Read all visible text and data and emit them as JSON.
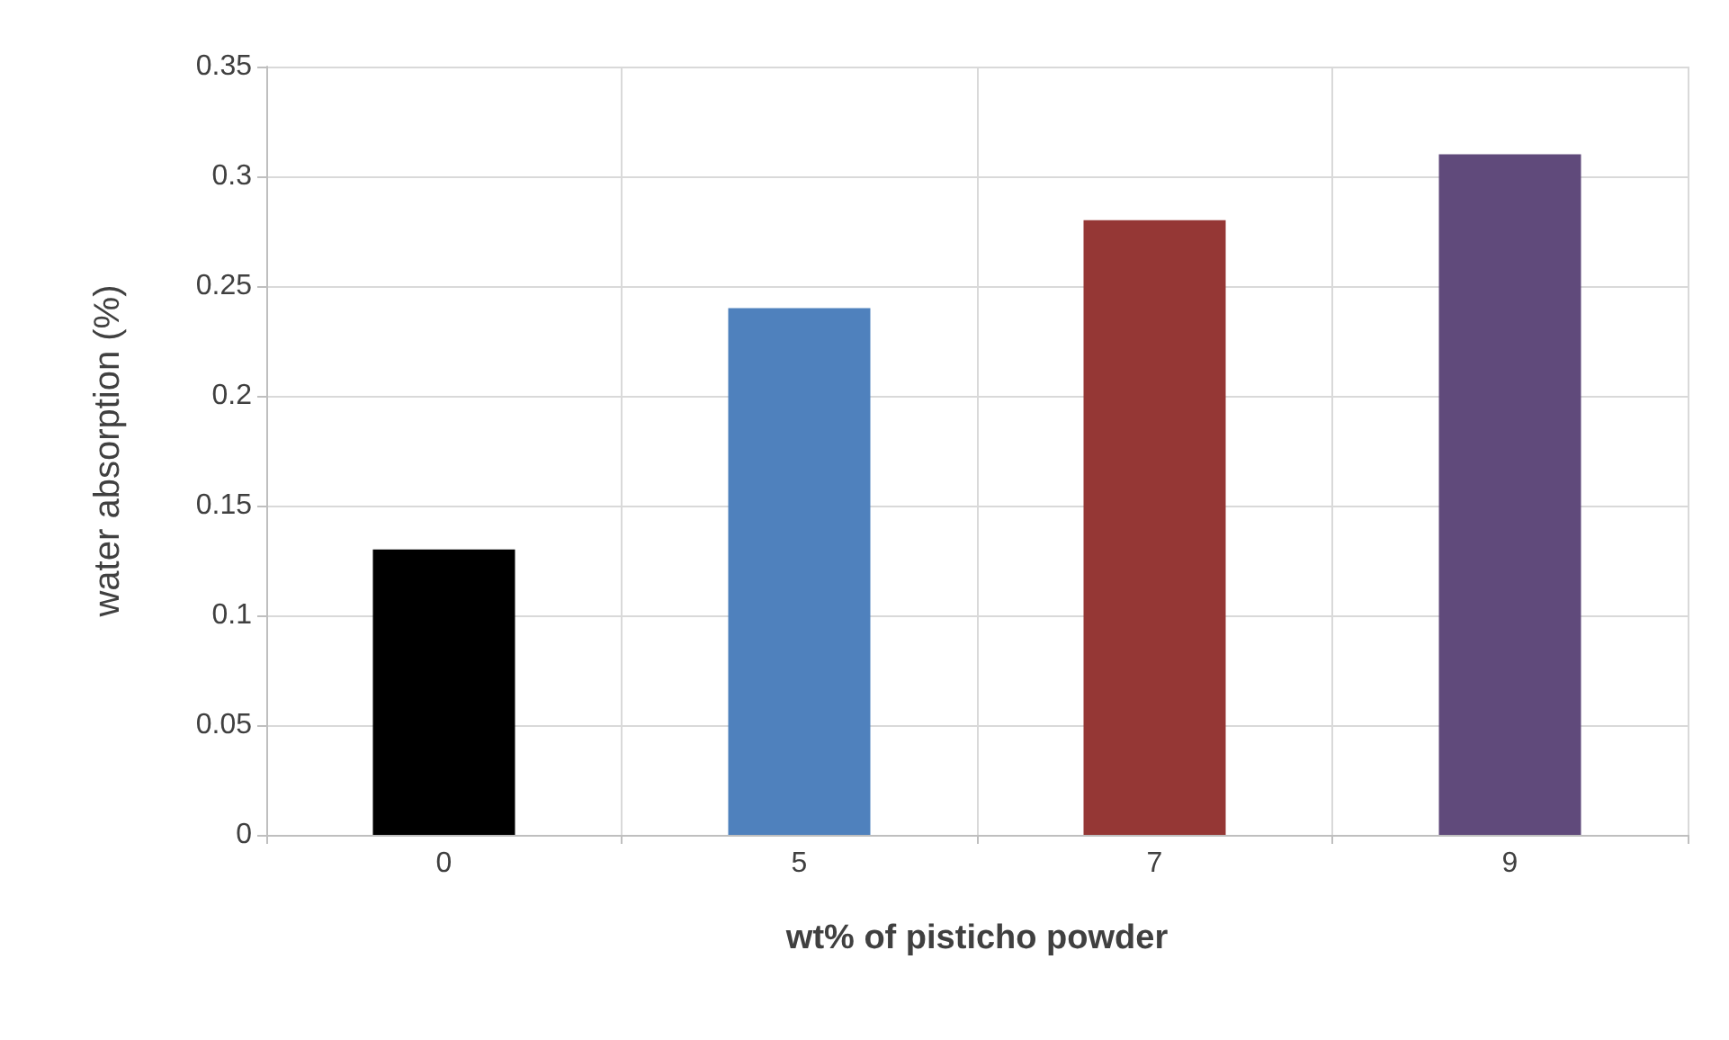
{
  "chart_data": {
    "type": "bar",
    "xlabel": "wt% of pisticho powder",
    "ylabel": "water absorption (%)",
    "categories": [
      "0",
      "5",
      "7",
      "9"
    ],
    "values": [
      0.13,
      0.24,
      0.28,
      0.31
    ],
    "colors": [
      "#000000",
      "#4f81bd",
      "#953735",
      "#604a7b"
    ],
    "ylim": [
      0,
      0.35
    ],
    "yticks": [
      0,
      0.05,
      0.1,
      0.15,
      0.2,
      0.25,
      0.3,
      0.35
    ],
    "grid": true
  }
}
